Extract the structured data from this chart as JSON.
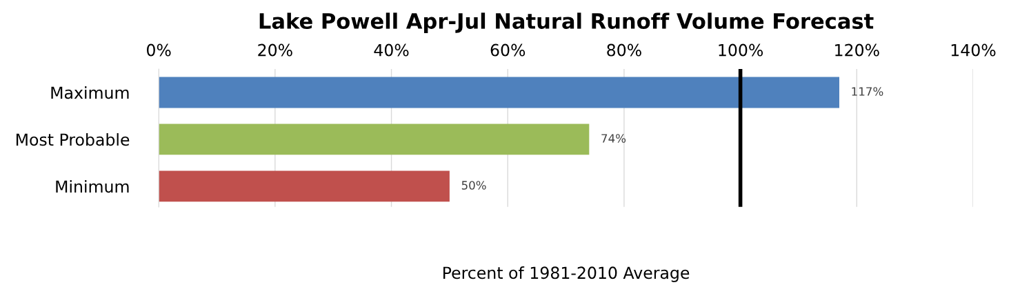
{
  "chart_data": {
    "type": "bar",
    "orientation": "horizontal",
    "title": "Lake Powell Apr-Jul Natural Runoff Volume Forecast",
    "xlabel": "Percent of 1981-2010 Average",
    "categories": [
      "Maximum",
      "Most Probable",
      "Minimum"
    ],
    "values": [
      117,
      74,
      50
    ],
    "colors": [
      "#4f81bd",
      "#9bbb59",
      "#c0504d"
    ],
    "value_labels": [
      "117%",
      "74%",
      "50%"
    ],
    "xlim": [
      0,
      140
    ],
    "xticks": [
      {
        "value": 0,
        "label": "0%"
      },
      {
        "value": 20,
        "label": "20%"
      },
      {
        "value": 40,
        "label": "40%"
      },
      {
        "value": 60,
        "label": "60%"
      },
      {
        "value": 80,
        "label": "80%"
      },
      {
        "value": 100,
        "label": "100%"
      },
      {
        "value": 120,
        "label": "120%"
      },
      {
        "value": 140,
        "label": "140%"
      }
    ],
    "ref_lines": [
      {
        "axis": "x",
        "value": 100,
        "color": "#000000"
      }
    ],
    "grid": "x",
    "legend": false
  }
}
